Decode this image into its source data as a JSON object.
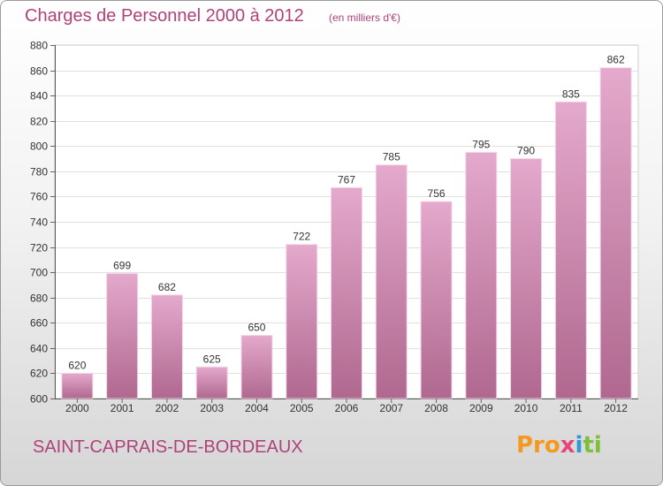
{
  "header": {
    "title": "Charges de Personnel 2000 à 2012",
    "subtitle": "(en milliers d'€)"
  },
  "footer": {
    "commune": "SAINT-CAPRAIS-DE-BORDEAUX",
    "logo": [
      "Pro",
      "x",
      "i",
      "ti"
    ]
  },
  "colors": {
    "bar_top": "#e4a9cc",
    "bar_bottom": "#b0688f",
    "accent": "#b0417a"
  },
  "chart_data": {
    "type": "bar",
    "title": "Charges de Personnel 2000 à 2012",
    "subtitle": "(en milliers d'€)",
    "categories": [
      "2000",
      "2001",
      "2002",
      "2003",
      "2004",
      "2005",
      "2006",
      "2007",
      "2008",
      "2009",
      "2010",
      "2011",
      "2012"
    ],
    "values": [
      620,
      699,
      682,
      625,
      650,
      722,
      767,
      785,
      756,
      795,
      790,
      835,
      862
    ],
    "ylim": [
      600,
      880
    ],
    "yticks": [
      600,
      620,
      640,
      660,
      680,
      700,
      720,
      740,
      760,
      780,
      800,
      820,
      840,
      860,
      880
    ],
    "grid": true,
    "data_labels": true
  }
}
